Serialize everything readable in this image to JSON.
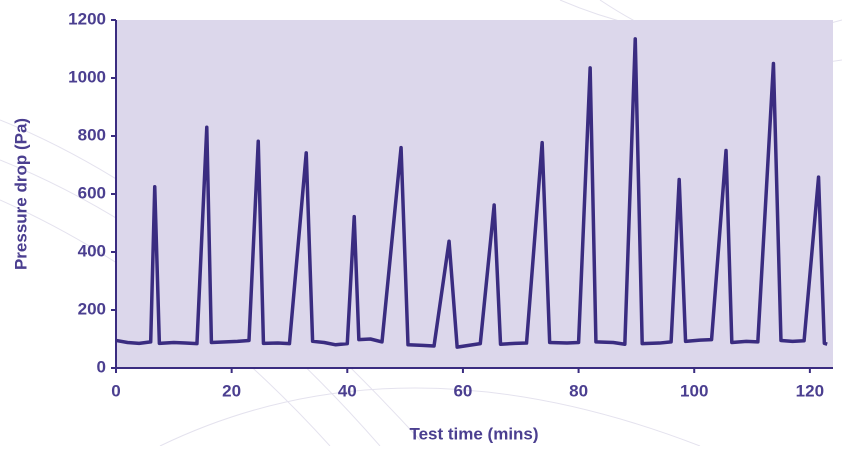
{
  "chart_data": {
    "type": "line",
    "x_label": "Test time (mins)",
    "y_label": "Pressure drop (Pa)",
    "xlim": [
      0,
      124
    ],
    "xticks": [
      0,
      20,
      40,
      60,
      80,
      100,
      120
    ],
    "ylim": [
      0,
      1200
    ],
    "yticks": [
      0,
      200,
      400,
      600,
      800,
      1000,
      1200
    ],
    "grid": false,
    "plot_background": "#dcd7eb",
    "series": [
      {
        "color": "#3a2c80",
        "x": [
          0,
          2,
          4,
          6,
          6.7,
          7.5,
          10,
          12,
          14,
          15.7,
          16.5,
          19,
          21,
          23,
          24.6,
          25.5,
          28,
          30,
          32.9,
          34,
          36,
          38,
          40,
          41.2,
          42,
          44,
          46,
          49.3,
          50.5,
          53,
          55,
          57.6,
          59,
          61,
          63,
          65.4,
          66.5,
          69,
          71,
          73.7,
          75,
          78,
          80,
          82,
          83,
          86,
          88,
          89.8,
          91,
          94,
          96,
          97.4,
          98.5,
          101,
          103,
          105.5,
          106.5,
          109,
          111,
          113.7,
          115,
          117,
          119,
          121.5,
          122.5,
          123
        ],
        "values": [
          95,
          88,
          85,
          90,
          625,
          85,
          88,
          86,
          84,
          830,
          88,
          90,
          92,
          95,
          782,
          85,
          86,
          84,
          742,
          92,
          88,
          80,
          84,
          522,
          98,
          100,
          90,
          760,
          80,
          78,
          76,
          437,
          72,
          78,
          84,
          562,
          82,
          85,
          86,
          777,
          88,
          86,
          88,
          1035,
          90,
          88,
          82,
          1135,
          84,
          86,
          90,
          650,
          92,
          96,
          98,
          750,
          88,
          92,
          90,
          1050,
          95,
          92,
          94,
          658,
          85,
          82
        ]
      }
    ]
  }
}
